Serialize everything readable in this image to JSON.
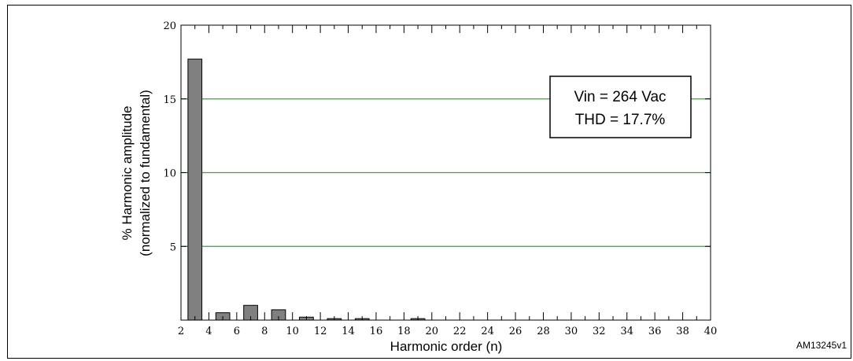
{
  "chart_data": {
    "type": "bar",
    "xlabel": "Harmonic order (n)",
    "ylabel_lines": [
      "% Harmonic amplitude",
      "(normalized to fundamental)"
    ],
    "xlim": [
      2,
      40
    ],
    "ylim": [
      0,
      20
    ],
    "x_ticks": [
      2,
      4,
      6,
      8,
      10,
      12,
      14,
      16,
      18,
      20,
      22,
      24,
      26,
      28,
      30,
      32,
      34,
      36,
      38,
      40
    ],
    "y_ticks": [
      5,
      10,
      15,
      20
    ],
    "x_minor_ticks": [
      3,
      5,
      7,
      9,
      11,
      13,
      15,
      17,
      19,
      21,
      23,
      25,
      27,
      29,
      31,
      33,
      35,
      37,
      39
    ],
    "grid": "horizontal",
    "colors": {
      "bar": "#808080",
      "grid": "#33aa33",
      "axis": "#000000"
    },
    "bars": [
      {
        "x": 3,
        "value": 17.7
      },
      {
        "x": 5,
        "value": 0.5
      },
      {
        "x": 7,
        "value": 1.0
      },
      {
        "x": 9,
        "value": 0.7
      },
      {
        "x": 11,
        "value": 0.2
      },
      {
        "x": 13,
        "value": 0.1
      },
      {
        "x": 15,
        "value": 0.1
      },
      {
        "x": 19,
        "value": 0.1
      }
    ],
    "annotation": {
      "lines": [
        "Vin = 264 Vac",
        "THD = 17.7%"
      ],
      "placement": "top-right"
    },
    "reference_code": "AM13245v1"
  }
}
